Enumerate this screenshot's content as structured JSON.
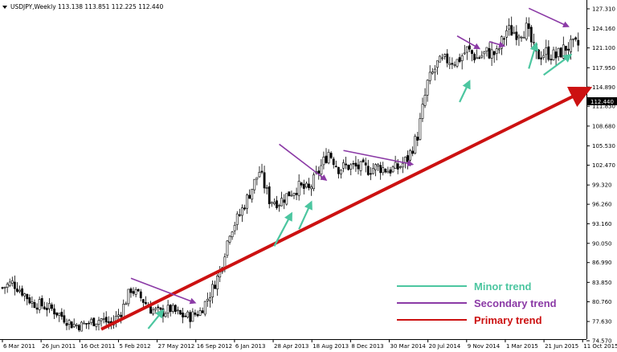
{
  "header": {
    "symbol": "USDJPY,Weekly",
    "ohlc": "113.138 113.851 112.225 112.440",
    "icon": "triangle-down-icon"
  },
  "legend": [
    {
      "label": "Minor trend",
      "color": "#4cc6a0"
    },
    {
      "label": "Secondary trend",
      "color": "#8b3aa6"
    },
    {
      "label": "Primary trend",
      "color": "#cc1111"
    }
  ],
  "chart_data": {
    "type": "candlestick",
    "title": "",
    "current_price": "112.440",
    "y_ticks": [
      "127.310",
      "124.160",
      "121.100",
      "117.950",
      "114.890",
      "111.830",
      "108.680",
      "105.530",
      "102.470",
      "99.320",
      "96.260",
      "93.160",
      "90.050",
      "86.990",
      "83.850",
      "80.760",
      "77.630",
      "74.570"
    ],
    "ylim": [
      74.57,
      127.31
    ],
    "x_ticks": [
      "6 Mar 2011",
      "26 Jun 2011",
      "16 Oct 2011",
      "5 Feb 2012",
      "27 May 2012",
      "16 Sep 2012",
      "6 Jan 2013",
      "28 Apr 2013",
      "18 Aug 2013",
      "8 Dec 2013",
      "30 Mar 2014",
      "20 Jul 2014",
      "9 Nov 2014",
      "1 Mar 2015",
      "21 Jun 2015",
      "11 Oct 2015"
    ],
    "price_path": [
      [
        0,
        83.0
      ],
      [
        4,
        83.8
      ],
      [
        8,
        82.4
      ],
      [
        12,
        80.6
      ],
      [
        16,
        80.2
      ],
      [
        20,
        79.6
      ],
      [
        24,
        78.5
      ],
      [
        28,
        77.2
      ],
      [
        32,
        77.0
      ],
      [
        36,
        77.6
      ],
      [
        40,
        78.0
      ],
      [
        44,
        77.2
      ],
      [
        48,
        79.2
      ],
      [
        52,
        82.8
      ],
      [
        56,
        81.4
      ],
      [
        60,
        79.6
      ],
      [
        64,
        79.0
      ],
      [
        68,
        79.6
      ],
      [
        72,
        78.6
      ],
      [
        76,
        78.4
      ],
      [
        80,
        79.2
      ],
      [
        84,
        82.0
      ],
      [
        88,
        85.5
      ],
      [
        92,
        92.0
      ],
      [
        96,
        94.6
      ],
      [
        100,
        98.0
      ],
      [
        104,
        101.5
      ],
      [
        108,
        97.0
      ],
      [
        112,
        96.6
      ],
      [
        116,
        98.0
      ],
      [
        120,
        99.0
      ],
      [
        124,
        98.5
      ],
      [
        128,
        101.5
      ],
      [
        132,
        104.6
      ],
      [
        136,
        102.0
      ],
      [
        140,
        102.3
      ],
      [
        144,
        102.1
      ],
      [
        148,
        101.8
      ],
      [
        152,
        102.2
      ],
      [
        156,
        101.7
      ],
      [
        160,
        102.0
      ],
      [
        164,
        103.5
      ],
      [
        168,
        107.2
      ],
      [
        172,
        115.5
      ],
      [
        176,
        118.5
      ],
      [
        180,
        119.2
      ],
      [
        184,
        119.0
      ],
      [
        188,
        120.8
      ],
      [
        192,
        119.5
      ],
      [
        196,
        120.4
      ],
      [
        200,
        120.1
      ],
      [
        204,
        123.9
      ],
      [
        208,
        123.6
      ],
      [
        212,
        124.1
      ],
      [
        216,
        119.8
      ],
      [
        220,
        120.4
      ],
      [
        224,
        119.7
      ],
      [
        228,
        121.2
      ],
      [
        232,
        121.5
      ]
    ],
    "trend_arrows": [
      {
        "trend": "Primary trend",
        "from": [
          40,
          76.4
        ],
        "to": [
          234,
          114.0
        ]
      },
      {
        "trend": "Secondary trend",
        "from": [
          52,
          84.5
        ],
        "to": [
          78,
          80.6
        ]
      },
      {
        "trend": "Secondary trend",
        "from": [
          112,
          105.8
        ],
        "to": [
          131,
          100.1
        ]
      },
      {
        "trend": "Secondary trend",
        "from": [
          138,
          104.8
        ],
        "to": [
          166,
          102.6
        ]
      },
      {
        "trend": "Secondary trend",
        "from": [
          184,
          123.0
        ],
        "to": [
          193,
          121.0
        ]
      },
      {
        "trend": "Secondary trend",
        "from": [
          197,
          122.1
        ],
        "to": [
          203,
          121.4
        ]
      },
      {
        "trend": "Secondary trend",
        "from": [
          213,
          127.4
        ],
        "to": [
          229,
          124.5
        ]
      },
      {
        "trend": "Minor trend",
        "from": [
          59,
          76.5
        ],
        "to": [
          65,
          79.4
        ]
      },
      {
        "trend": "Minor trend",
        "from": [
          110,
          89.6
        ],
        "to": [
          117,
          94.8
        ]
      },
      {
        "trend": "Minor trend",
        "from": [
          120,
          92.3
        ],
        "to": [
          125,
          96.6
        ]
      },
      {
        "trend": "Minor trend",
        "from": [
          185,
          112.5
        ],
        "to": [
          189,
          115.8
        ]
      },
      {
        "trend": "Minor trend",
        "from": [
          213,
          117.8
        ],
        "to": [
          216,
          121.8
        ]
      },
      {
        "trend": "Minor trend",
        "from": [
          219,
          116.8
        ],
        "to": [
          230,
          120.0
        ]
      }
    ]
  }
}
